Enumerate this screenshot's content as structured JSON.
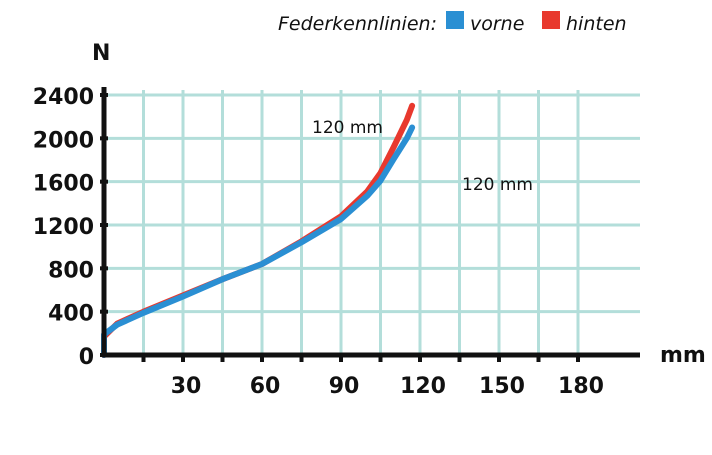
{
  "chart_data": {
    "type": "line",
    "legend_title": "Federkennlinien:",
    "legend_placement": "top-right",
    "xlabel": "mm",
    "ylabel": "N",
    "xlim": [
      0,
      180
    ],
    "ylim": [
      0,
      2400
    ],
    "grid": true,
    "x_gridlines_every": 15,
    "x_ticks": [
      30,
      60,
      90,
      120,
      150,
      180
    ],
    "y_ticks": [
      0,
      400,
      800,
      1200,
      1600,
      2000,
      2400
    ],
    "series": [
      {
        "name": "vorne",
        "color": "#2a8fd3",
        "x": [
          0,
          0,
          5,
          15,
          30,
          45,
          60,
          75,
          90,
          100,
          105,
          110,
          115,
          117
        ],
        "y": [
          0,
          190,
          280,
          390,
          540,
          700,
          840,
          1040,
          1255,
          1470,
          1610,
          1810,
          2000,
          2100
        ]
      },
      {
        "name": "hinten",
        "color": "#e8392e",
        "x": [
          0,
          0,
          5,
          15,
          30,
          45,
          60,
          75,
          90,
          100,
          105,
          110,
          115,
          117
        ],
        "y": [
          0,
          170,
          290,
          400,
          550,
          700,
          840,
          1050,
          1280,
          1510,
          1680,
          1920,
          2170,
          2300
        ]
      }
    ],
    "annotations": [
      "120  mm",
      "120  mm"
    ]
  },
  "grid_color": "#b3deda"
}
